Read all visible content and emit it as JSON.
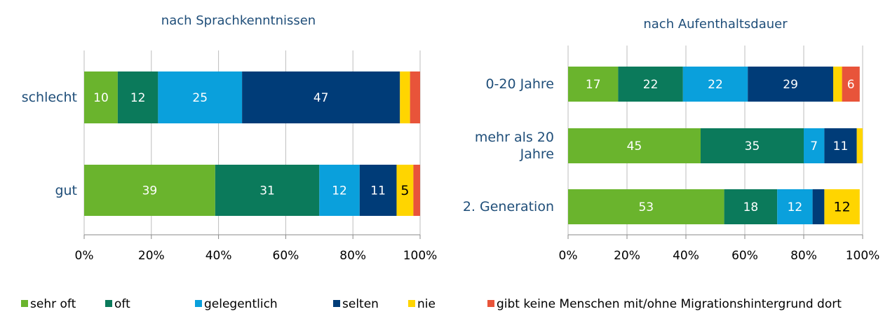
{
  "legend": [
    {
      "name": "sehr oft",
      "color": "#6ab42d"
    },
    {
      "name": "oft",
      "color": "#0b7a5b"
    },
    {
      "name": "gelegentlich",
      "color": "#0aa0dc"
    },
    {
      "name": "selten",
      "color": "#003c78"
    },
    {
      "name": "nie",
      "color": "#ffd500"
    },
    {
      "name": "gibt keine Menschen mit/ohne Migrationshintergrund dort",
      "color": "#e8543a"
    }
  ],
  "chart_data": [
    {
      "type": "stacked-bar-horizontal",
      "title": "nach Sprachkenntnissen",
      "categories": [
        "schlecht",
        "gut"
      ],
      "series": [
        {
          "values": [
            10,
            39
          ]
        },
        {
          "values": [
            12,
            31
          ]
        },
        {
          "values": [
            25,
            12
          ]
        },
        {
          "values": [
            47,
            11
          ]
        },
        {
          "values": [
            3,
            5
          ]
        },
        {
          "values": [
            3,
            2
          ]
        }
      ],
      "xlim": [
        0,
        100
      ],
      "xticks": [
        {
          "value": 0,
          "label": "0%"
        },
        {
          "value": 20,
          "label": "20%"
        },
        {
          "value": 40,
          "label": "40%"
        },
        {
          "value": 60,
          "label": "60%"
        },
        {
          "value": 80,
          "label": "80%"
        },
        {
          "value": 100,
          "label": "100%"
        }
      ],
      "grid": true
    },
    {
      "type": "stacked-bar-horizontal",
      "title": "nach Aufenthaltsdauer",
      "categories": [
        "0-20 Jahre",
        "mehr als 20 Jahre",
        "2. Generation"
      ],
      "series": [
        {
          "values": [
            17,
            45,
            53
          ]
        },
        {
          "values": [
            22,
            35,
            18
          ]
        },
        {
          "values": [
            22,
            7,
            12
          ]
        },
        {
          "values": [
            29,
            11,
            4
          ]
        },
        {
          "values": [
            3,
            2,
            12
          ]
        },
        {
          "values": [
            6,
            0,
            0
          ]
        }
      ],
      "xlim": [
        0,
        100
      ],
      "xticks": [
        {
          "value": 0,
          "label": "0%"
        },
        {
          "value": 20,
          "label": "20%"
        },
        {
          "value": 40,
          "label": "40%"
        },
        {
          "value": 60,
          "label": "60%"
        },
        {
          "value": 80,
          "label": "80%"
        },
        {
          "value": 100,
          "label": "100%"
        }
      ],
      "grid": true
    }
  ]
}
